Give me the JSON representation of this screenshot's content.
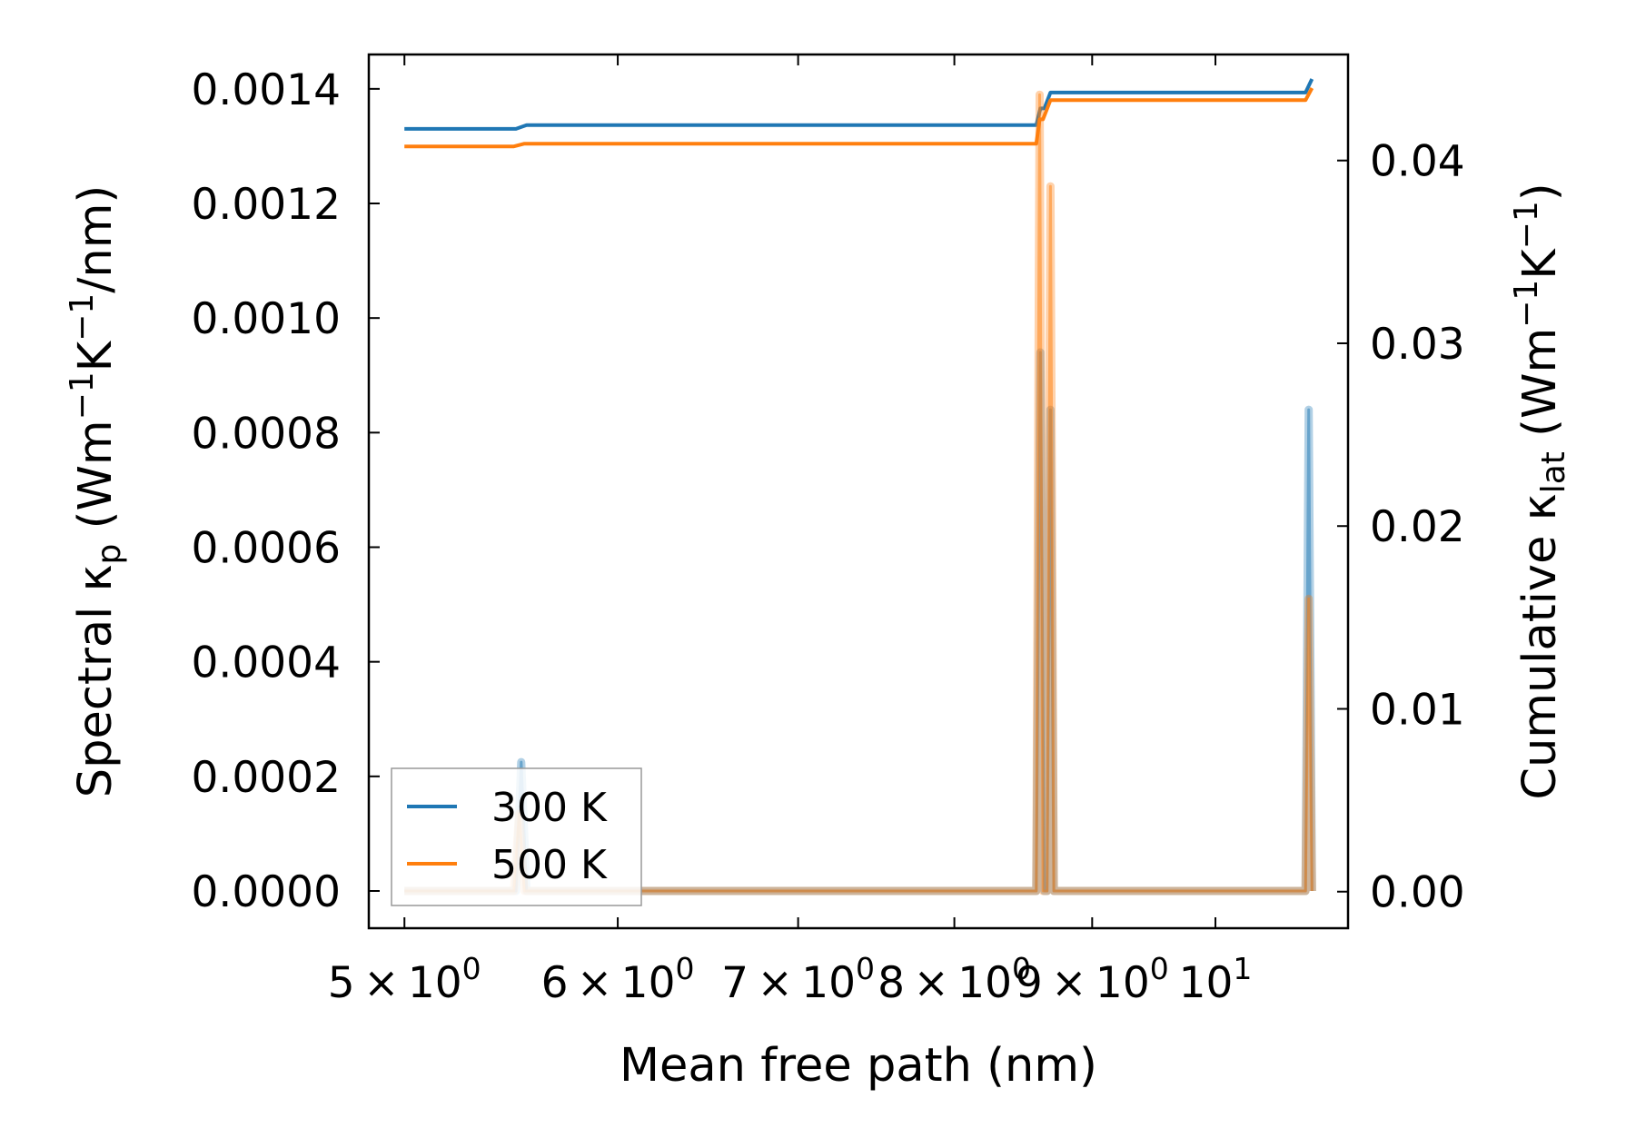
{
  "chart_data": {
    "type": "line",
    "xscale": "log",
    "xlim": [
      4.85,
      11.2
    ],
    "xlabel": "Mean free path (nm)",
    "x_tick_labels": [
      {
        "x": 5,
        "base": "5 × 10",
        "exp": "0"
      },
      {
        "x": 6,
        "base": "6 × 10",
        "exp": "0"
      },
      {
        "x": 7,
        "base": "7 × 10",
        "exp": "0"
      },
      {
        "x": 8,
        "base": "8 × 10",
        "exp": "0"
      },
      {
        "x": 9,
        "base": "9 × 10",
        "exp": "0"
      },
      {
        "x": 10,
        "base": "10",
        "exp": "1"
      }
    ],
    "y_left": {
      "label_parts": {
        "pre": "Spectral κ",
        "sub": "p",
        "mid": " (Wm",
        "sup1": "−1",
        "mid2": "K",
        "sup2": "−1",
        "post": "/nm)"
      },
      "ylim": [
        -6.5e-05,
        0.00146
      ],
      "ticks": [
        0.0,
        0.0002,
        0.0004,
        0.0006,
        0.0008,
        0.001,
        0.0012,
        0.0014
      ],
      "tick_labels": [
        "0.0000",
        "0.0002",
        "0.0004",
        "0.0006",
        "0.0008",
        "0.0010",
        "0.0012",
        "0.0014"
      ]
    },
    "y_right": {
      "label_parts": {
        "pre": "Cumulative κ",
        "sub": "lat",
        "mid": " (Wm",
        "sup1": "−1",
        "mid2": "K",
        "sup2": "−1",
        "post": ")"
      },
      "ylim": [
        -0.002,
        0.0458
      ],
      "ticks": [
        0.0,
        0.01,
        0.02,
        0.03,
        0.04
      ],
      "tick_labels": [
        "0.00",
        "0.01",
        "0.02",
        "0.03",
        "0.04"
      ]
    },
    "spectral_series": [
      {
        "name": "300 K spectral",
        "color": "#1f77b4",
        "points": [
          [
            5.0,
            0
          ],
          [
            5.5,
            0
          ],
          [
            5.525,
            0.000225
          ],
          [
            5.55,
            0
          ],
          [
            8.58,
            0
          ],
          [
            8.61,
            0.00094
          ],
          [
            8.64,
            0
          ],
          [
            8.66,
            0
          ],
          [
            8.685,
            0.00084
          ],
          [
            8.71,
            0
          ],
          [
            10.8,
            0
          ],
          [
            10.83,
            0.00084
          ],
          [
            10.86,
            0
          ]
        ]
      },
      {
        "name": "500 K spectral",
        "color": "#ff7f0e",
        "points": [
          [
            5.0,
            0
          ],
          [
            5.49,
            0
          ],
          [
            5.515,
            0.000135
          ],
          [
            5.54,
            0
          ],
          [
            8.58,
            0
          ],
          [
            8.605,
            0.00139
          ],
          [
            8.63,
            0
          ],
          [
            8.66,
            0
          ],
          [
            8.685,
            0.00123
          ],
          [
            8.71,
            0
          ],
          [
            10.8,
            0
          ],
          [
            10.83,
            0.00051
          ],
          [
            10.86,
            0
          ]
        ]
      }
    ],
    "cumulative_series": [
      {
        "name": "300 K",
        "color": "#1f77b4",
        "points": [
          [
            5.0,
            0.04173
          ],
          [
            5.5,
            0.04173
          ],
          [
            5.55,
            0.04194
          ],
          [
            8.58,
            0.04194
          ],
          [
            8.61,
            0.04285
          ],
          [
            8.64,
            0.04285
          ],
          [
            8.685,
            0.04372
          ],
          [
            10.8,
            0.04372
          ],
          [
            10.86,
            0.04446
          ]
        ]
      },
      {
        "name": "500 K",
        "color": "#ff7f0e",
        "points": [
          [
            5.0,
            0.04077
          ],
          [
            5.49,
            0.04077
          ],
          [
            5.54,
            0.04092
          ],
          [
            8.58,
            0.04092
          ],
          [
            8.605,
            0.04225
          ],
          [
            8.63,
            0.04225
          ],
          [
            8.685,
            0.0433
          ],
          [
            10.8,
            0.0433
          ],
          [
            10.86,
            0.04396
          ]
        ]
      }
    ],
    "legend": {
      "location": "lower-left",
      "entries": [
        {
          "label": "300 K",
          "color": "#1f77b4"
        },
        {
          "label": "500 K",
          "color": "#ff7f0e"
        }
      ]
    }
  }
}
